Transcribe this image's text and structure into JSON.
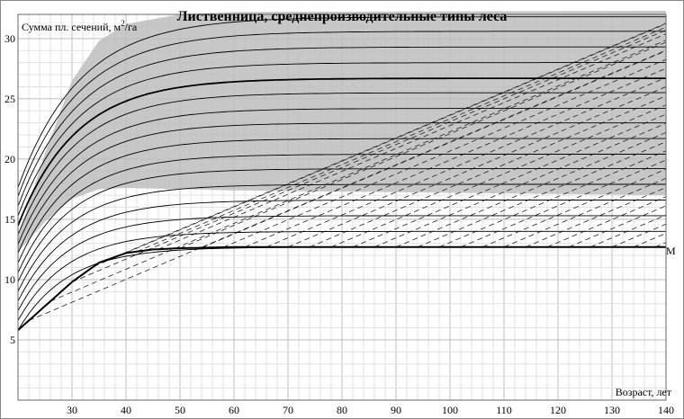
{
  "chart_data": {
    "type": "line",
    "title": "Лиственница, среднепроизводительные типы леса",
    "ylabel_main": "Сумма пл. сечений, м",
    "ylabel_sup": "2",
    "ylabel_tail": "/га",
    "xlabel": "Возраст, лет",
    "xlim": [
      20,
      140
    ],
    "ylim": [
      0,
      32
    ],
    "xticks": [
      "30",
      "40",
      "50",
      "60",
      "70",
      "80",
      "90",
      "100",
      "110",
      "120",
      "130",
      "140"
    ],
    "yticks": [
      "5",
      "10",
      "15",
      "20",
      "25",
      "30"
    ],
    "minor_grid_x_step": 2,
    "minor_grid_y_step": 1,
    "shaded_band": {
      "upper": [
        [
          20,
          13.5
        ],
        [
          25,
          20.5
        ],
        [
          30,
          26.5
        ],
        [
          35,
          29.8
        ],
        [
          40,
          31.2
        ],
        [
          50,
          32.0
        ],
        [
          60,
          32.2
        ],
        [
          140,
          32.3
        ]
      ],
      "lower": [
        [
          20,
          12.3
        ],
        [
          25,
          14.8
        ],
        [
          30,
          16.7
        ],
        [
          35,
          17.5
        ],
        [
          40,
          17.6
        ],
        [
          60,
          17.4
        ],
        [
          100,
          17.2
        ],
        [
          140,
          17.0
        ]
      ]
    },
    "base_curve": [
      [
        20,
        5.8
      ],
      [
        25,
        7.8
      ],
      [
        30,
        9.8
      ],
      [
        35,
        11.4
      ],
      [
        40,
        12.2
      ],
      [
        45,
        12.5
      ],
      [
        50,
        12.6
      ],
      [
        60,
        12.7
      ],
      [
        140,
        12.7
      ]
    ],
    "base_label": "M",
    "curve_asymptotes": [
      12.7,
      14.0,
      15.3,
      16.6,
      17.9,
      19.2,
      20.4,
      21.7,
      23.0,
      24.2,
      25.5,
      26.7,
      28.0,
      29.3,
      30.6,
      31.8
    ],
    "dashed_lines": {
      "count": 32,
      "age_step": 4,
      "slope_per_year": 0.19
    }
  }
}
